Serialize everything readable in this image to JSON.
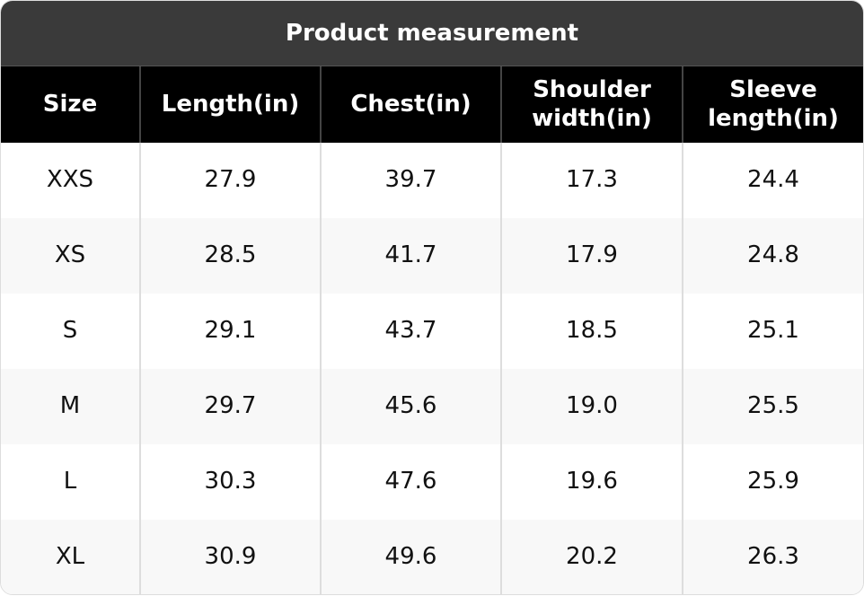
{
  "title": "Product measurement",
  "table": {
    "header": [
      "Size",
      "Length(in)",
      "Chest(in)",
      "Shoulder width(in)",
      "Sleeve length(in)"
    ],
    "rows": [
      [
        "XXS",
        "27.9",
        "39.7",
        "17.3",
        "24.4"
      ],
      [
        "XS",
        "28.5",
        "41.7",
        "17.9",
        "24.8"
      ],
      [
        "S",
        "29.1",
        "43.7",
        "18.5",
        "25.1"
      ],
      [
        "M",
        "29.7",
        "45.6",
        "19.0",
        "25.5"
      ],
      [
        "L",
        "30.3",
        "47.6",
        "19.6",
        "25.9"
      ],
      [
        "XL",
        "30.9",
        "49.6",
        "20.2",
        "26.3"
      ]
    ]
  }
}
